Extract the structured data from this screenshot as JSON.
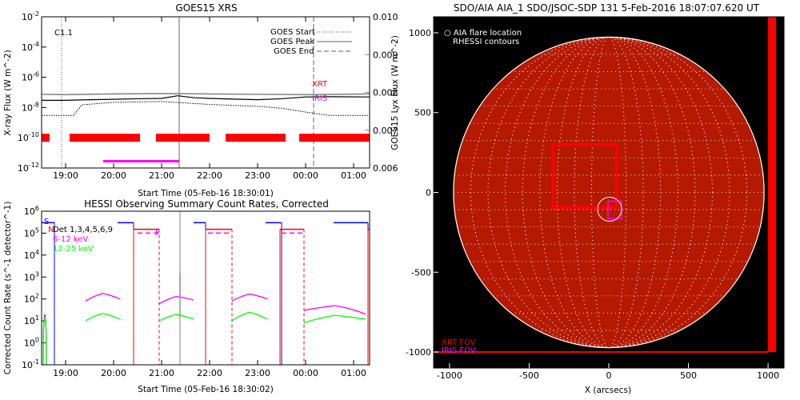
{
  "colors": {
    "flare_bar": "#ff0000",
    "iris_bar": "#ff00ff",
    "hessi_ch1": "#ff00ff",
    "hessi_ch2": "#00ff00",
    "xrt_label": "#ff0000",
    "iris_label": "#ff00ff",
    "sun_disk": "#b51a00",
    "sun_bg": "#000000",
    "grid": "#ffffff"
  },
  "chart_data": [
    {
      "id": "goes",
      "type": "line",
      "title": "GOES15 XRS",
      "xlabel": "Start Time (05-Feb-16 18:30:01)",
      "ylabel": "X-ray Flux (W m^-2)",
      "y2label": "GOES15 Lyx Flux (W m^-2)",
      "x_range": [
        "18:30",
        "01:20"
      ],
      "x_ticks": [
        "19:00",
        "20:00",
        "21:00",
        "22:00",
        "23:00",
        "00:00",
        "01:00"
      ],
      "y_scale": "log",
      "ylim": [
        1e-12,
        0.01
      ],
      "y_ticks": [
        "10^-12",
        "10^-10",
        "10^-8",
        "10^-6",
        "10^-4",
        "10^-2"
      ],
      "y2lim": [
        0.006,
        0.01
      ],
      "y2_ticks": [
        "0.006",
        "0.007",
        "0.008",
        "0.009",
        "0.010"
      ],
      "flare_label": "C1.1",
      "legend": [
        "GOES Start",
        "GOES Peak",
        "GOES End"
      ],
      "labels": {
        "xrt": "XRT",
        "iris": "IRIS"
      },
      "markers": {
        "start": "18:55",
        "peak": "21:22",
        "end": "00:10"
      },
      "series": [
        {
          "name": "long",
          "x": [
            "18:30",
            "19:00",
            "19:30",
            "20:00",
            "20:30",
            "21:00",
            "21:20",
            "21:40",
            "22:00",
            "22:30",
            "23:00",
            "23:30",
            "00:00",
            "00:30",
            "01:20"
          ],
          "y": [
            3e-08,
            3e-08,
            3.3e-08,
            3.5e-08,
            3.8e-08,
            4e-08,
            6e-08,
            4.5e-08,
            4e-08,
            3.6e-08,
            3.3e-08,
            3.8e-08,
            5e-08,
            5.2e-08,
            5e-08
          ]
        },
        {
          "name": "lyx",
          "x": [
            "18:30",
            "19:00",
            "20:00",
            "21:00",
            "22:00",
            "23:00",
            "00:00",
            "01:20"
          ],
          "y": [
            0.00795,
            0.00794,
            0.00796,
            0.00797,
            0.00796,
            0.00795,
            0.00794,
            0.00796
          ]
        },
        {
          "name": "short",
          "x": [
            "18:30",
            "19:00",
            "19:10",
            "19:20",
            "20:00",
            "21:00",
            "22:00",
            "23:00",
            "23:30",
            "00:00",
            "00:30",
            "01:20"
          ],
          "y": [
            3e-09,
            3e-09,
            3e-09,
            1.5e-08,
            2.2e-08,
            2.5e-08,
            1.6e-08,
            1.2e-08,
            9e-09,
            5e-09,
            3e-09,
            3e-09
          ]
        }
      ],
      "xrt_bars": [
        [
          "18:30",
          "18:40"
        ],
        [
          "19:05",
          "20:33"
        ],
        [
          "20:53",
          "22:00"
        ],
        [
          "22:20",
          "23:35"
        ],
        [
          "23:52",
          "01:20"
        ]
      ],
      "iris_bars": [
        [
          "19:47",
          "21:22"
        ]
      ]
    },
    {
      "id": "hessi",
      "type": "line",
      "title": "HESSI Observing Summary Count Rates, Corrected",
      "xlabel": "Start Time (05-Feb-16 18:30:02)",
      "ylabel": "Corrected Count Rate (s^-1 detector^-1)",
      "x_range": [
        "18:30",
        "01:20"
      ],
      "x_ticks": [
        "19:00",
        "20:00",
        "21:00",
        "22:00",
        "23:00",
        "00:00",
        "01:00"
      ],
      "y_scale": "log",
      "ylim": [
        0.1,
        1000000.0
      ],
      "y_ticks": [
        "10^-1",
        "10^0",
        "10^1",
        "10^2",
        "10^3",
        "10^4",
        "10^5",
        "10^6"
      ],
      "legend_text": [
        "Det 1,3,4,5,6,9",
        "6-12 keV",
        "12-25 keV"
      ],
      "flags": [
        "N",
        "S",
        "F"
      ],
      "series": [
        {
          "name": "6-12 keV",
          "y": [
            [
              [
                "18:32",
                "18:36"
              ],
              0.1,
              20,
              0.1
            ],
            [
              [
                "19:25",
                "20:08"
              ],
              80,
              180,
              100
            ],
            [
              [
                "20:57",
                "21:40"
              ],
              60,
              130,
              90
            ],
            [
              [
                "22:28",
                "23:12"
              ],
              80,
              170,
              100
            ],
            [
              [
                "23:58",
                "01:15"
              ],
              30,
              50,
              20
            ]
          ]
        },
        {
          "name": "12-25 keV",
          "y": [
            [
              [
                "18:32",
                "18:36"
              ],
              0.1,
              15,
              0.1
            ],
            [
              [
                "19:25",
                "20:08"
              ],
              10,
              22,
              12
            ],
            [
              [
                "20:57",
                "21:40"
              ],
              10,
              20,
              12
            ],
            [
              [
                "22:28",
                "23:12"
              ],
              10,
              25,
              12
            ],
            [
              [
                "23:58",
                "01:15"
              ],
              8,
              18,
              12
            ]
          ]
        }
      ],
      "spike": {
        "time": "21:23",
        "ch1_peak": 1500,
        "ch2_peak": 90
      },
      "saa_bars": [
        [
          "18:30",
          "18:46"
        ],
        [
          "20:05",
          "20:25"
        ],
        [
          "21:40",
          "21:55"
        ],
        [
          "23:10",
          "23:30"
        ],
        [
          "00:35",
          "01:18"
        ]
      ],
      "night_red": [
        [
          "20:25",
          "20:57"
        ],
        [
          "21:55",
          "22:28"
        ],
        [
          "23:28",
          "23:58"
        ],
        [
          "01:18",
          "01:20"
        ]
      ],
      "f_segments": [
        [
          "20:30",
          "20:56"
        ],
        [
          "21:58",
          "22:26"
        ],
        [
          "23:30",
          "23:56"
        ]
      ]
    },
    {
      "id": "aia",
      "type": "image",
      "title": "SDO/AIA AIA_1 SDO/JSOC-SDP 131    5-Feb-2016 18:07:07.620 UT",
      "xlabel": "X (arcsecs)",
      "ylabel": "Y (arcsecs)",
      "xlim": [
        -1100,
        1100
      ],
      "ylim": [
        -1100,
        1100
      ],
      "x_ticks": [
        "-1000",
        "-500",
        "0",
        "500",
        "1000"
      ],
      "y_ticks": [
        "-1000",
        "-500",
        "0",
        "500",
        "1000"
      ],
      "legend": [
        "AIA flare location",
        "RHESSI contours"
      ],
      "labels": {
        "xrt": "XRT FOV",
        "iris": "IRIS FOV"
      },
      "sun_radius_arcsec": 975,
      "flare_location": [
        5,
        -105
      ],
      "xrt_fov": {
        "x0": -350,
        "x1": 50,
        "y0": -95,
        "y1": 300
      },
      "iris_fov": {
        "x0": -5,
        "x1": 80,
        "y0": -165,
        "y1": -55
      }
    }
  ]
}
